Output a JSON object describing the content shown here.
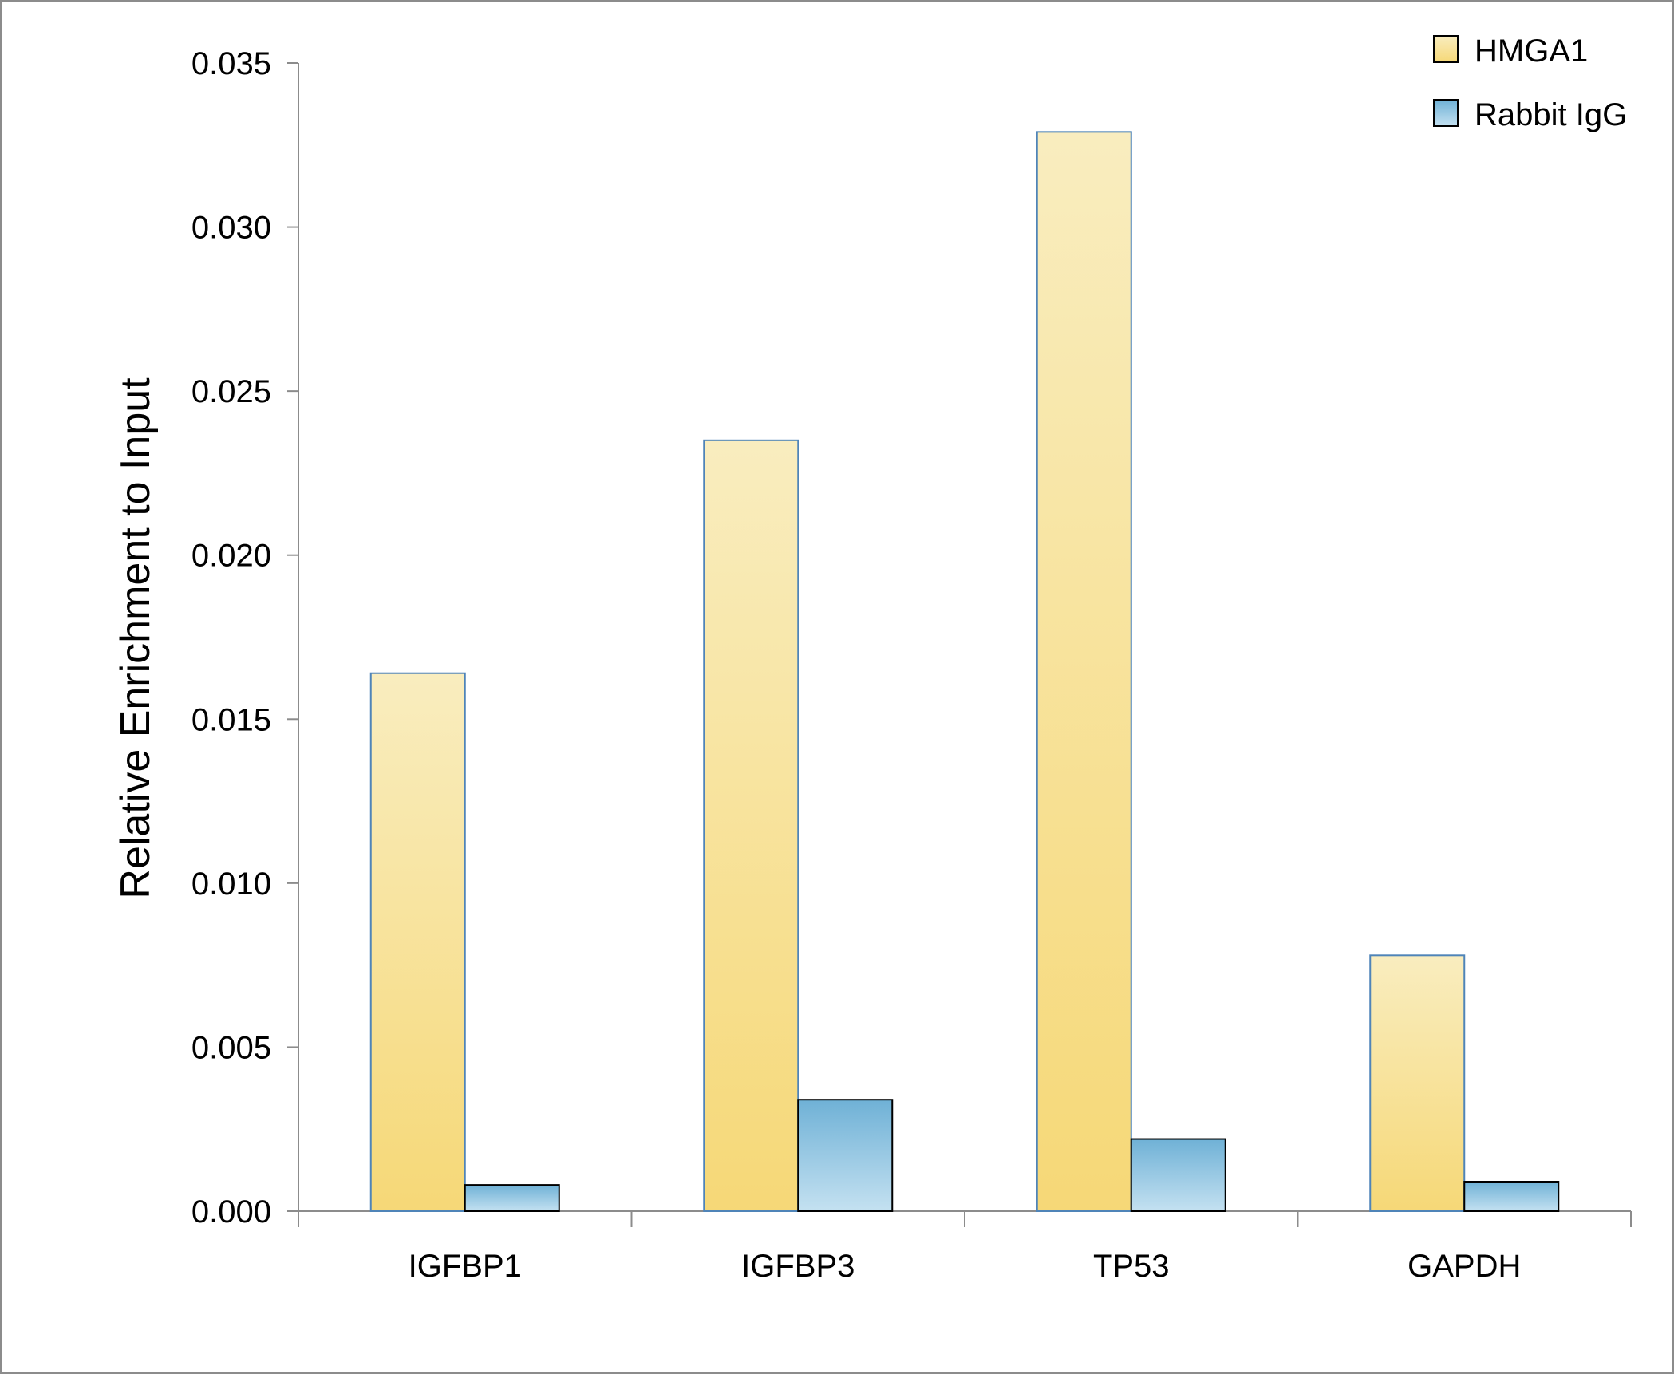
{
  "chart_data": {
    "type": "bar",
    "title": "",
    "xlabel": "",
    "ylabel": "Relative Enrichment to Input",
    "categories": [
      "IGFBP1",
      "IGFBP3",
      "TP53",
      "GAPDH"
    ],
    "series": [
      {
        "name": "HMGA1",
        "values": [
          0.0164,
          0.0235,
          0.0329,
          0.0078
        ]
      },
      {
        "name": "Rabbit IgG",
        "values": [
          0.0008,
          0.0034,
          0.0022,
          0.0009
        ]
      }
    ],
    "ylim": [
      0,
      0.035
    ],
    "yticks": [
      "0.000",
      "0.005",
      "0.010",
      "0.015",
      "0.020",
      "0.025",
      "0.030",
      "0.035"
    ],
    "grid": false,
    "legend_position": "top-right",
    "colors": {
      "HMGA1_top": "#f9edbf",
      "HMGA1_bottom": "#f6d877",
      "HMGA1_border": "#4f84b8",
      "IgG_top": "#6fb1d6",
      "IgG_bottom": "#c4e1f1",
      "IgG_border": "#000000",
      "axis": "#8c8c8c"
    }
  }
}
